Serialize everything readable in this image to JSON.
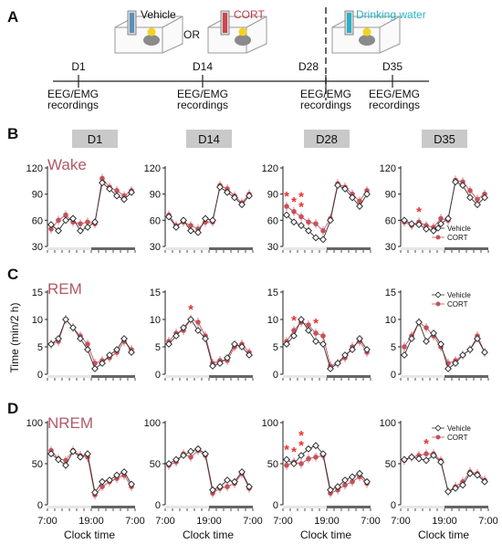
{
  "panel_labels": [
    "A",
    "B",
    "C",
    "D"
  ],
  "design": {
    "vehicle": "Vehicle",
    "or": "OR",
    "cort": "CORT",
    "drinking": "Drinking water",
    "days": [
      "D1",
      "D14",
      "D28",
      "D35"
    ],
    "recording": [
      "EEG/EMG",
      "recordings"
    ],
    "colors": {
      "vehicle": "#5b8fbf",
      "cort": "#d2434d",
      "water": "#2bb0c6",
      "dashed": "#333333"
    }
  },
  "col_headers": [
    "D1",
    "D14",
    "D28",
    "D35"
  ],
  "row_labels": [
    "Wake",
    "REM",
    "NREM"
  ],
  "y_label": "Time (min/2 h)",
  "x_label": "Clock time",
  "x_ticks": [
    "7:00",
    "19:00",
    "7:00"
  ],
  "legend": {
    "vehicle": "Vehicle",
    "cort": "CORT"
  },
  "colors": {
    "vehicle_fill": "#ffffff",
    "cort": "#c5525d",
    "star": "#e8312f",
    "dark_bar": "#666666",
    "light_bar": "#e6e6e6",
    "header_box": "#c9c9c9"
  },
  "chart_data": [
    {
      "type": "line",
      "title": "Wake",
      "ylim": [
        30,
        120
      ],
      "yticks": [
        30,
        60,
        90,
        120
      ],
      "x": [
        1,
        3,
        5,
        7,
        9,
        11,
        13,
        15,
        17,
        19,
        21,
        23
      ],
      "panels": [
        {
          "day": "D1",
          "series": [
            {
              "name": "Vehicle",
              "values": [
                55,
                48,
                60,
                62,
                48,
                52,
                58,
                103,
                96,
                88,
                84,
                92
              ]
            },
            {
              "name": "CORT",
              "values": [
                50,
                60,
                66,
                58,
                56,
                58,
                56,
                108,
                98,
                94,
                88,
                94
              ]
            }
          ]
        },
        {
          "day": "D14",
          "series": [
            {
              "name": "Vehicle",
              "values": [
                64,
                52,
                60,
                48,
                46,
                62,
                60,
                98,
                92,
                86,
                78,
                88
              ]
            },
            {
              "name": "CORT",
              "values": [
                66,
                54,
                58,
                54,
                50,
                58,
                58,
                100,
                96,
                88,
                80,
                90
              ]
            }
          ]
        },
        {
          "day": "D28",
          "series": [
            {
              "name": "Vehicle",
              "values": [
                66,
                58,
                54,
                48,
                40,
                38,
                60,
                100,
                96,
                86,
                76,
                90
              ]
            },
            {
              "name": "CORT",
              "values": [
                76,
                70,
                64,
                58,
                56,
                48,
                62,
                102,
                98,
                90,
                82,
                94
              ]
            }
          ],
          "significance": [
            1,
            3,
            5,
            5
          ]
        },
        {
          "day": "D35",
          "series": [
            {
              "name": "Vehicle",
              "values": [
                60,
                56,
                55,
                50,
                48,
                56,
                62,
                104,
                100,
                86,
                78,
                86
              ]
            },
            {
              "name": "CORT",
              "values": [
                58,
                54,
                58,
                54,
                52,
                62,
                60,
                106,
                104,
                94,
                84,
                90
              ]
            }
          ],
          "significance": [
            5
          ]
        }
      ]
    },
    {
      "type": "line",
      "title": "REM",
      "ylim": [
        0,
        15
      ],
      "yticks": [
        0,
        5,
        10,
        15
      ],
      "x": [
        1,
        3,
        5,
        7,
        9,
        11,
        13,
        15,
        17,
        19,
        21,
        23
      ],
      "panels": [
        {
          "day": "D1",
          "series": [
            {
              "name": "Vehicle",
              "values": [
                5.5,
                6.5,
                10,
                8.5,
                6.5,
                4.5,
                1,
                2,
                3.5,
                4.5,
                6.5,
                4
              ]
            },
            {
              "name": "CORT",
              "values": [
                5.5,
                6,
                10,
                8.5,
                7,
                5.5,
                2,
                2.5,
                3,
                4,
                6,
                4.5
              ]
            }
          ]
        },
        {
          "day": "D14",
          "series": [
            {
              "name": "Vehicle",
              "values": [
                5.5,
                7,
                8.5,
                10,
                8,
                6.5,
                1.5,
                2,
                3,
                5.5,
                5,
                3.5
              ]
            },
            {
              "name": "CORT",
              "values": [
                6,
                7.5,
                8,
                10,
                9.5,
                7,
                2,
                2.5,
                2.5,
                5,
                5.5,
                4
              ]
            }
          ],
          "significance": [
            7
          ]
        },
        {
          "day": "D28",
          "series": [
            {
              "name": "Vehicle",
              "values": [
                5.5,
                7,
                10,
                8,
                6,
                5.5,
                1,
                2,
                3.5,
                4.5,
                6.5,
                4.5
              ]
            },
            {
              "name": "CORT",
              "values": [
                6,
                8,
                9.5,
                9,
                7.5,
                7,
                1.5,
                2,
                3,
                5,
                6,
                4
              ]
            }
          ],
          "significance": [
            3,
            9
          ]
        },
        {
          "day": "D35",
          "series": [
            {
              "name": "Vehicle",
              "values": [
                3.5,
                6.5,
                9.5,
                6,
                7.5,
                5.5,
                1,
                2,
                3.5,
                4.5,
                6.5,
                4
              ]
            },
            {
              "name": "CORT",
              "values": [
                5,
                7,
                9.5,
                8.5,
                7,
                5,
                2,
                2.5,
                3.5,
                4.5,
                7,
                4
              ]
            }
          ]
        }
      ]
    },
    {
      "type": "line",
      "title": "NREM",
      "ylim": [
        0,
        100
      ],
      "yticks": [
        0,
        50,
        100
      ],
      "x": [
        1,
        3,
        5,
        7,
        9,
        11,
        13,
        15,
        17,
        19,
        21,
        23
      ],
      "panels": [
        {
          "day": "D1",
          "series": [
            {
              "name": "Vehicle",
              "values": [
                62,
                55,
                48,
                65,
                58,
                62,
                15,
                28,
                30,
                36,
                40,
                25
              ]
            },
            {
              "name": "CORT",
              "values": [
                66,
                56,
                54,
                66,
                60,
                58,
                12,
                22,
                28,
                32,
                36,
                22
              ]
            }
          ]
        },
        {
          "day": "D14",
          "series": [
            {
              "name": "Vehicle",
              "values": [
                50,
                55,
                60,
                65,
                68,
                62,
                18,
                22,
                30,
                28,
                40,
                22
              ]
            },
            {
              "name": "CORT",
              "values": [
                48,
                52,
                62,
                58,
                66,
                60,
                14,
                20,
                22,
                26,
                38,
                20
              ]
            }
          ]
        },
        {
          "day": "D28",
          "series": [
            {
              "name": "Vehicle",
              "values": [
                55,
                50,
                60,
                68,
                72,
                62,
                18,
                22,
                30,
                34,
                38,
                28
              ]
            },
            {
              "name": "CORT",
              "values": [
                48,
                52,
                50,
                56,
                58,
                60,
                14,
                18,
                24,
                28,
                34,
                26
              ]
            }
          ],
          "significance": [
            1,
            3,
            5,
            5
          ]
        },
        {
          "day": "D35",
          "series": [
            {
              "name": "Vehicle",
              "values": [
                55,
                58,
                56,
                54,
                60,
                52,
                16,
                20,
                24,
                38,
                36,
                28
              ]
            },
            {
              "name": "CORT",
              "values": [
                54,
                58,
                60,
                62,
                62,
                54,
                16,
                22,
                28,
                40,
                38,
                30
              ]
            }
          ],
          "significance": [
            7
          ]
        }
      ]
    }
  ]
}
